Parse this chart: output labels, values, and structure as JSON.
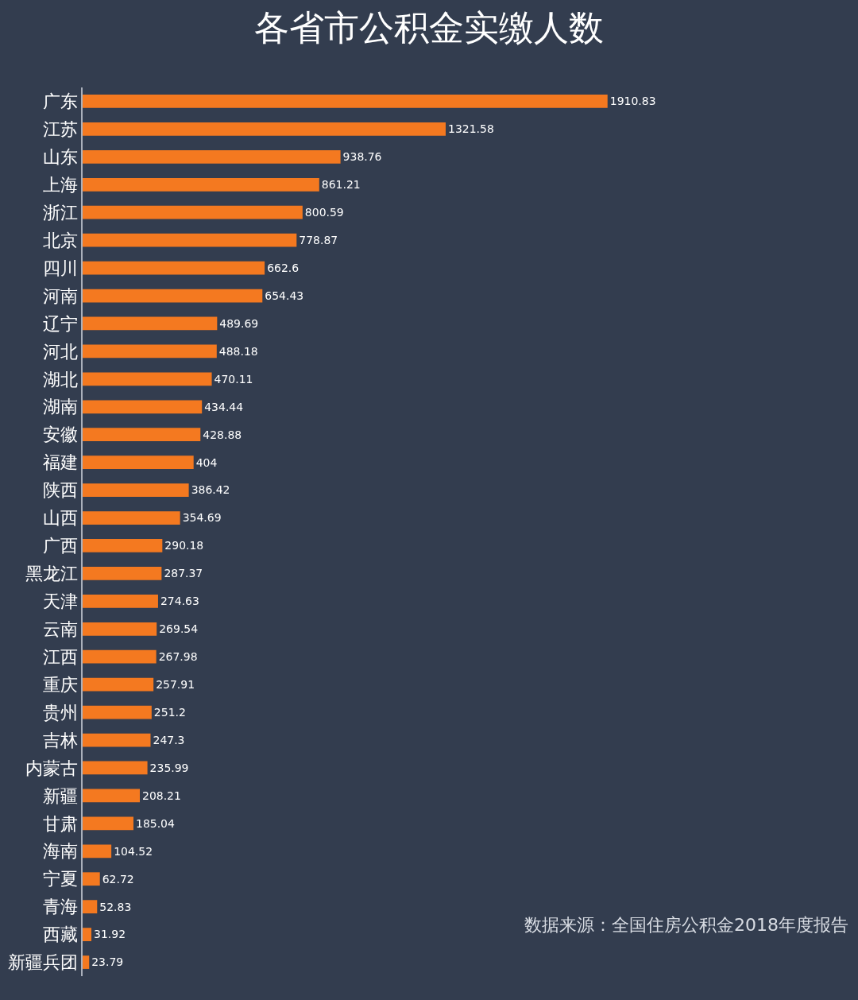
{
  "chart_data": {
    "type": "bar",
    "orientation": "horizontal",
    "title": "各省市公积金实缴人数",
    "categories": [
      "广东",
      "江苏",
      "山东",
      "上海",
      "浙江",
      "北京",
      "四川",
      "河南",
      "辽宁",
      "河北",
      "湖北",
      "湖南",
      "安徽",
      "福建",
      "陕西",
      "山西",
      "广西",
      "黑龙江",
      "天津",
      "云南",
      "江西",
      "重庆",
      "贵州",
      "吉林",
      "内蒙古",
      "新疆",
      "甘肃",
      "海南",
      "宁夏",
      "青海",
      "西藏",
      "新疆兵团"
    ],
    "values": [
      1910.83,
      1321.58,
      938.76,
      861.21,
      800.59,
      778.87,
      662.6,
      654.43,
      489.69,
      488.18,
      470.11,
      434.44,
      428.88,
      404,
      386.42,
      354.69,
      290.18,
      287.37,
      274.63,
      269.54,
      267.98,
      257.91,
      251.2,
      247.3,
      235.99,
      208.21,
      185.04,
      104.52,
      62.72,
      52.83,
      31.92,
      23.79
    ],
    "color": "#f47920",
    "data_labels": true,
    "grid": false,
    "legend": false,
    "tick_labels": "y",
    "annotations": [
      "数据来源：全国住房公积金2018年度报告"
    ]
  }
}
